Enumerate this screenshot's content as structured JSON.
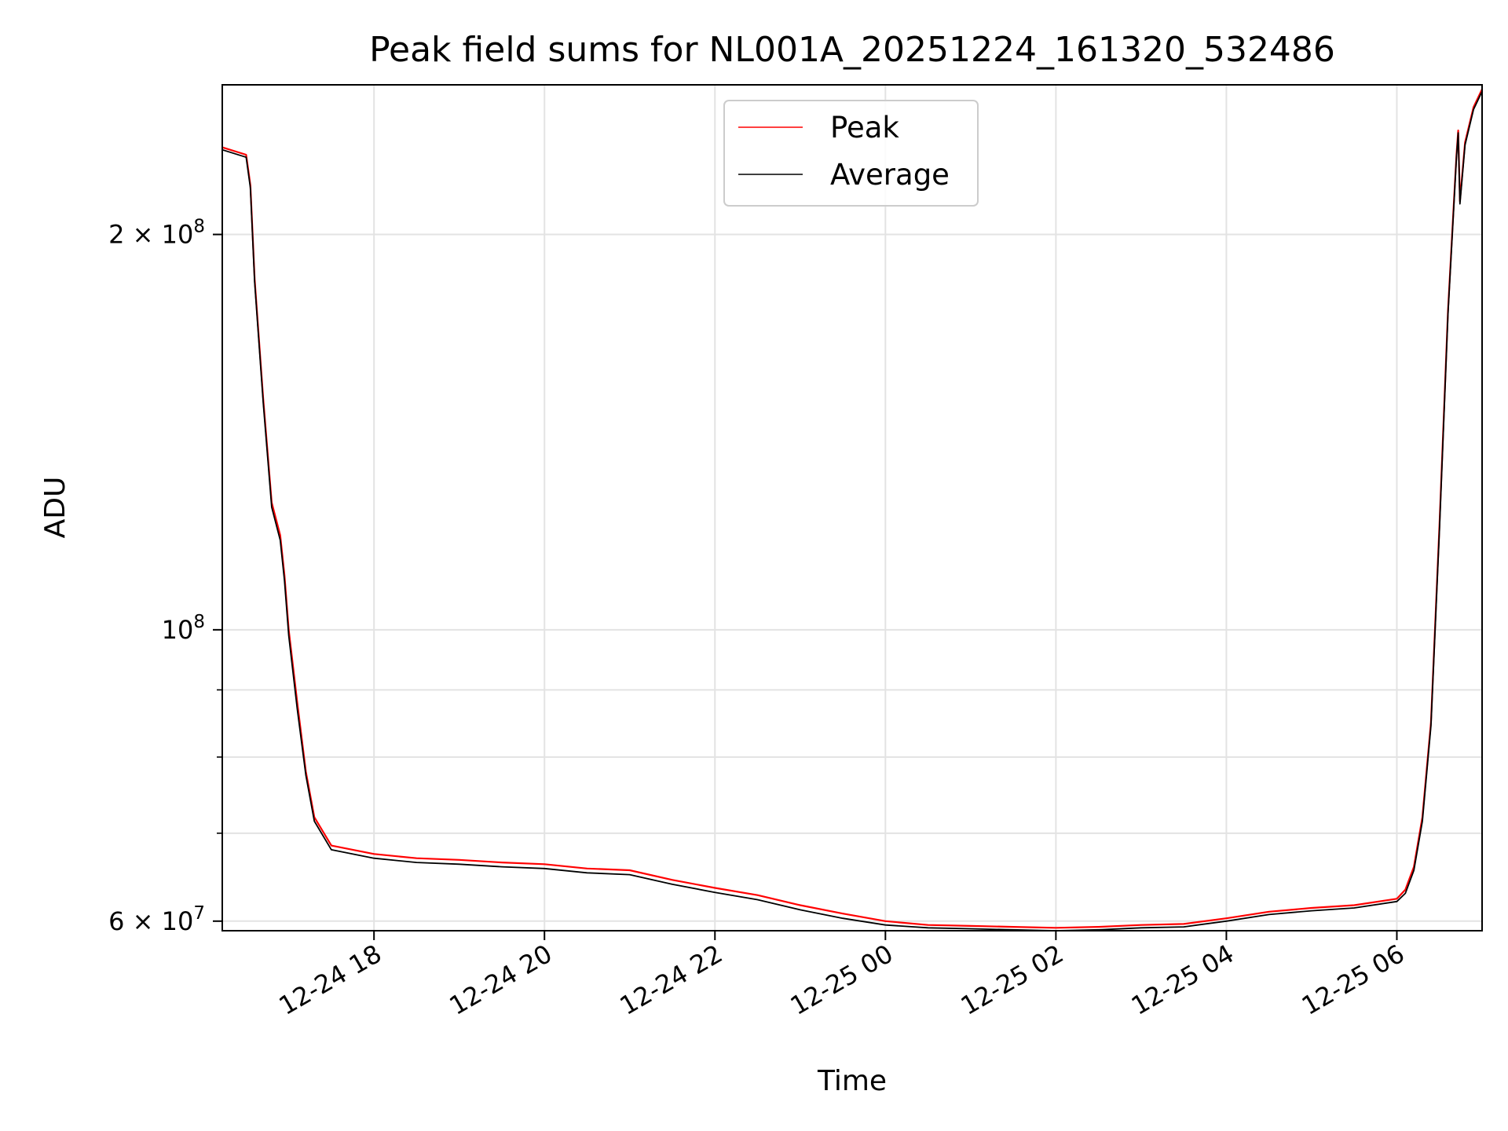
{
  "chart_data": {
    "type": "line",
    "title": "Peak field sums for NL001A_20251224_161320_532486",
    "xlabel": "Time",
    "ylabel": "ADU",
    "yscale": "log",
    "xlim_hours": [
      16.22,
      31.0
    ],
    "ylim": [
      59000000,
      260000000
    ],
    "grid": true,
    "legend_position": "upper center",
    "x_ticks": [
      {
        "hour": 18,
        "label": "12-24 18"
      },
      {
        "hour": 20,
        "label": "12-24 20"
      },
      {
        "hour": 22,
        "label": "12-24 22"
      },
      {
        "hour": 24,
        "label": "12-25 00"
      },
      {
        "hour": 26,
        "label": "12-25 02"
      },
      {
        "hour": 28,
        "label": "12-25 04"
      },
      {
        "hour": 30,
        "label": "12-25 06"
      }
    ],
    "y_major_ticks": [
      {
        "value": 60000000,
        "mantissa": "6",
        "exp": "7"
      },
      {
        "value": 100000000,
        "mantissa": "",
        "exp": "8"
      },
      {
        "value": 200000000,
        "mantissa": "2",
        "exp": "8"
      }
    ],
    "y_minor_ticks": [
      70000000,
      80000000,
      90000000
    ],
    "series": [
      {
        "name": "Peak",
        "color": "#ff0000",
        "x_hours": [
          16.22,
          16.5,
          16.55,
          16.6,
          16.7,
          16.8,
          16.9,
          16.95,
          17.0,
          17.1,
          17.2,
          17.3,
          17.5,
          18.0,
          18.5,
          19.0,
          19.5,
          20.0,
          20.5,
          21.0,
          21.5,
          22.0,
          22.5,
          23.0,
          23.5,
          24.0,
          24.5,
          25.0,
          25.5,
          26.0,
          26.5,
          27.0,
          27.5,
          28.0,
          28.5,
          29.0,
          29.5,
          30.0,
          30.1,
          30.2,
          30.3,
          30.4,
          30.5,
          30.6,
          30.7,
          30.72,
          30.74,
          30.8,
          30.9,
          31.0
        ],
        "values": [
          233000000,
          230000000,
          218000000,
          185000000,
          150000000,
          125000000,
          118000000,
          110000000,
          100000000,
          88000000,
          78000000,
          72000000,
          68500000,
          67500000,
          67000000,
          66800000,
          66500000,
          66300000,
          65800000,
          65600000,
          64500000,
          63600000,
          62800000,
          61700000,
          60800000,
          60000000,
          59600000,
          59500000,
          59400000,
          59300000,
          59400000,
          59600000,
          59700000,
          60300000,
          61000000,
          61400000,
          61700000,
          62400000,
          63400000,
          66000000,
          72000000,
          85000000,
          120000000,
          175000000,
          230000000,
          240000000,
          212000000,
          235000000,
          250000000,
          258000000
        ]
      },
      {
        "name": "Average",
        "color": "#000000",
        "x_hours": [
          16.22,
          16.5,
          16.55,
          16.6,
          16.7,
          16.8,
          16.9,
          16.95,
          17.0,
          17.1,
          17.2,
          17.3,
          17.5,
          18.0,
          18.5,
          19.0,
          19.5,
          20.0,
          20.5,
          21.0,
          21.5,
          22.0,
          22.5,
          23.0,
          23.5,
          24.0,
          24.5,
          25.0,
          25.5,
          26.0,
          26.5,
          27.0,
          27.5,
          28.0,
          28.5,
          29.0,
          29.5,
          30.0,
          30.1,
          30.2,
          30.3,
          30.4,
          30.5,
          30.6,
          30.7,
          30.72,
          30.74,
          30.8,
          30.9,
          31.0
        ],
        "values": [
          232000000,
          229000000,
          217000000,
          184000000,
          149000000,
          124000000,
          117000000,
          109000000,
          99000000,
          87000000,
          77500000,
          71500000,
          68000000,
          67000000,
          66500000,
          66300000,
          66000000,
          65800000,
          65300000,
          65100000,
          64000000,
          63100000,
          62300000,
          61200000,
          60300000,
          59600000,
          59300000,
          59200000,
          59100000,
          59000000,
          59100000,
          59300000,
          59400000,
          60000000,
          60700000,
          61100000,
          61400000,
          62100000,
          63000000,
          65600000,
          71500000,
          84500000,
          119000000,
          174000000,
          229000000,
          239000000,
          211000000,
          234000000,
          249000000,
          257000000
        ]
      }
    ]
  }
}
